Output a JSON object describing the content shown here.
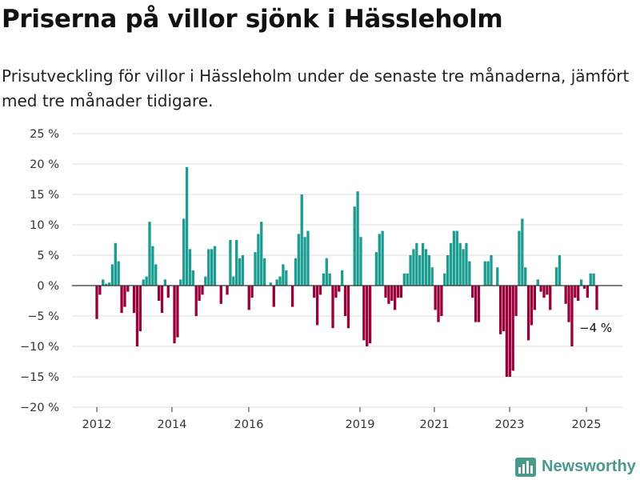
{
  "title": "Priserna på villor sjönk i Hässleholm",
  "subtitle": "Prisutveckling för villor i Hässleholm under de senaste tre månaderna, jämfört med tre månader tidigare.",
  "brand": "Newsworthy",
  "colors": {
    "positive": "#1a9c91",
    "negative": "#99003a",
    "grid": "#dddddd",
    "zero": "#333333",
    "brand": "#4a9a8c"
  },
  "chart_data": {
    "type": "bar",
    "title": "Priserna på villor sjönk i Hässleholm",
    "xlabel": "",
    "ylabel": "",
    "ylim": [
      -20,
      25
    ],
    "yticks": [
      25,
      20,
      15,
      10,
      5,
      0,
      -5,
      -10,
      -15,
      -20
    ],
    "ytick_labels": [
      "25 %",
      "20 %",
      "15 %",
      "10 %",
      "5 %",
      "0 %",
      "−5 %",
      "−10 %",
      "−15 %",
      "−20 %"
    ],
    "xtick_labels": [
      "2012",
      "2014",
      "2016",
      "2019",
      "2021",
      "2023",
      "2025"
    ],
    "grid": true,
    "annotation": "−4 %",
    "values": [
      -5.5,
      -1.5,
      1.0,
      0.3,
      0.5,
      3.5,
      7.0,
      4.0,
      -4.5,
      -3.5,
      -1.0,
      0.0,
      -4.5,
      -10.0,
      -7.5,
      1.0,
      1.5,
      10.5,
      6.5,
      3.5,
      -2.5,
      -4.5,
      1.0,
      -2.0,
      0.0,
      -9.5,
      -8.5,
      1.0,
      11.0,
      19.5,
      6.0,
      2.5,
      -5.0,
      -2.5,
      -1.5,
      1.5,
      6.0,
      6.0,
      6.5,
      0.0,
      -3.0,
      0.0,
      -1.5,
      7.5,
      1.5,
      7.5,
      4.5,
      5.0,
      0.0,
      -4.0,
      -2.0,
      5.5,
      8.5,
      10.5,
      4.5,
      0.0,
      0.5,
      -3.5,
      1.0,
      1.5,
      3.5,
      2.5,
      0.0,
      -3.5,
      4.5,
      8.5,
      15.0,
      8.0,
      9.0,
      0.0,
      -2.0,
      -6.5,
      -1.5,
      2.0,
      4.5,
      2.0,
      -7.0,
      -2.0,
      -1.0,
      2.5,
      -5.0,
      -7.0,
      0.0,
      13.0,
      15.5,
      8.0,
      -9.0,
      -10.0,
      -9.5,
      0.0,
      5.5,
      8.5,
      9.0,
      -2.0,
      -3.0,
      -2.5,
      -4.0,
      -2.0,
      -2.0,
      2.0,
      2.0,
      5.0,
      6.0,
      7.0,
      5.0,
      7.0,
      6.0,
      5.0,
      3.0,
      -4.0,
      -6.0,
      -5.0,
      2.0,
      5.0,
      7.0,
      9.0,
      9.0,
      7.0,
      6.0,
      7.0,
      4.0,
      -2.0,
      -6.0,
      -6.0,
      0.0,
      4.0,
      4.0,
      5.0,
      0.0,
      3.0,
      -8.0,
      -7.5,
      -15.0,
      -15.0,
      -14.0,
      -5.0,
      9.0,
      11.0,
      3.0,
      -9.0,
      -6.5,
      -4.0,
      1.0,
      -1.0,
      -2.0,
      -1.5,
      -4.0,
      0.0,
      3.0,
      5.0,
      0.0,
      -3.0,
      -6.0,
      -10.0,
      -2.0,
      -2.5,
      1.0,
      -0.5,
      -2.0,
      2.0,
      2.0,
      -4.0
    ]
  }
}
